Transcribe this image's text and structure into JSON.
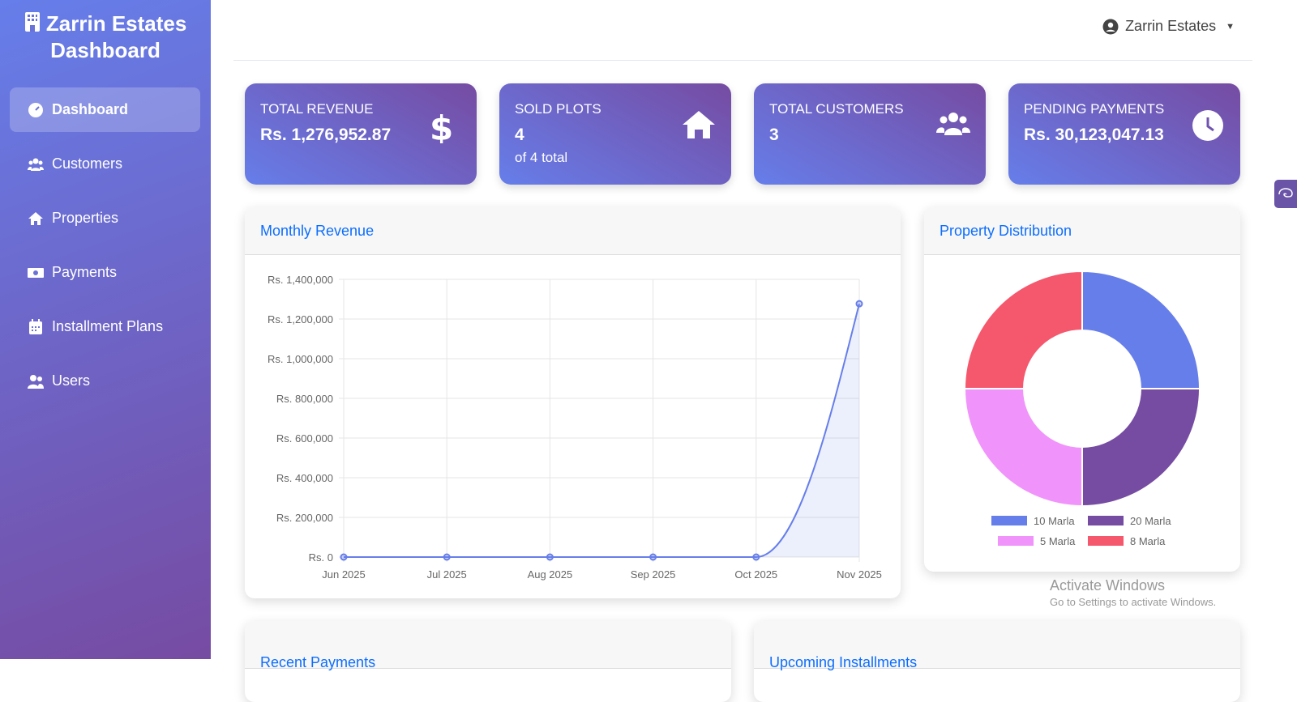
{
  "brand": {
    "title": "Zarrin Estates Dashboard"
  },
  "sidebar": {
    "items": [
      {
        "label": "Dashboard",
        "icon": "gauge-icon",
        "active": true
      },
      {
        "label": "Customers",
        "icon": "users-icon"
      },
      {
        "label": "Properties",
        "icon": "home-icon"
      },
      {
        "label": "Payments",
        "icon": "money-icon"
      },
      {
        "label": "Installment Plans",
        "icon": "calendar-icon"
      },
      {
        "label": "Users",
        "icon": "user-group-icon"
      }
    ]
  },
  "header": {
    "user": "Zarrin Estates"
  },
  "stats": [
    {
      "title": "TOTAL REVENUE",
      "value": "Rs. 1,276,952.87",
      "icon": "dollar-icon"
    },
    {
      "title": "SOLD PLOTS",
      "value": "4",
      "sub": "of 4 total",
      "icon": "home-icon"
    },
    {
      "title": "TOTAL CUSTOMERS",
      "value": "3",
      "icon": "users-icon"
    },
    {
      "title": "PENDING PAYMENTS",
      "value": "Rs. 30,123,047.13",
      "icon": "clock-icon"
    }
  ],
  "cards": {
    "monthly": "Monthly Revenue",
    "distribution": "Property Distribution",
    "recent": "Recent Payments",
    "upcoming": "Upcoming Installments"
  },
  "watermark": {
    "title": "Activate Windows",
    "sub": "Go to Settings to activate Windows."
  },
  "chart_data": [
    {
      "type": "area",
      "categories": [
        "Jun 2025",
        "Jul 2025",
        "Aug 2025",
        "Sep 2025",
        "Oct 2025",
        "Nov 2025"
      ],
      "values": [
        0,
        0,
        0,
        0,
        0,
        1276952.87
      ],
      "ylim": [
        0,
        1400000
      ],
      "yticks": [
        "Rs. 0",
        "Rs. 200,000",
        "Rs. 400,000",
        "Rs. 600,000",
        "Rs. 800,000",
        "Rs. 1,000,000",
        "Rs. 1,200,000",
        "Rs. 1,400,000"
      ],
      "grid": true,
      "color": "#667eea"
    },
    {
      "type": "pie",
      "donut": true,
      "labels": [
        "10 Marla",
        "20 Marla",
        "5 Marla",
        "8 Marla"
      ],
      "values": [
        1,
        1,
        1,
        1
      ],
      "colors": [
        "#667eea",
        "#764ba2",
        "#f093fb",
        "#f5576c"
      ],
      "legend": "bottom"
    }
  ]
}
